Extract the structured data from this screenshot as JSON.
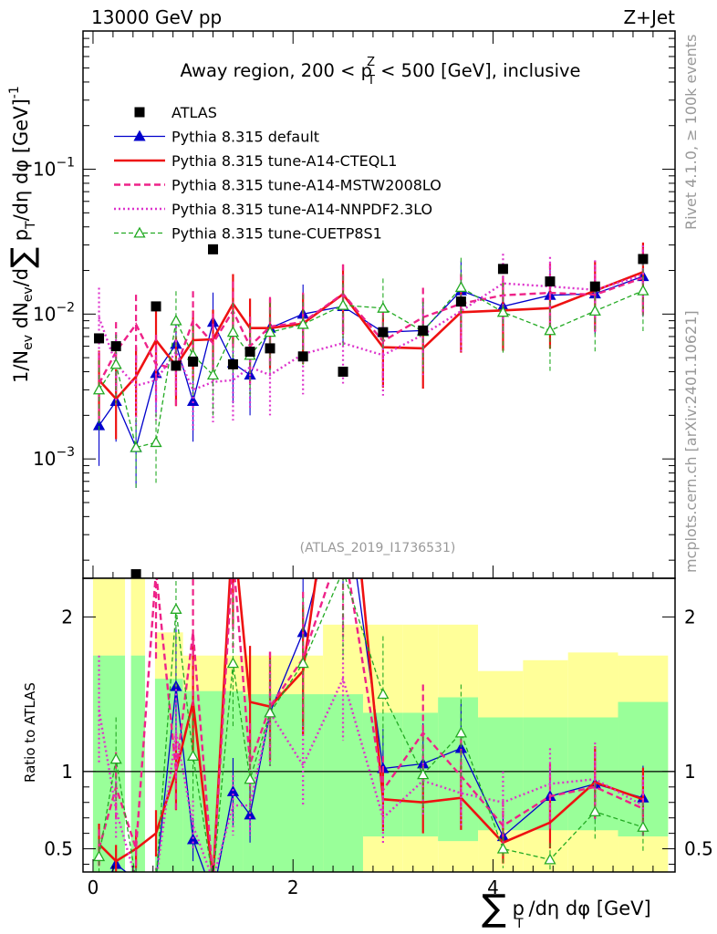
{
  "header": {
    "energy_label": "13000 GeV pp",
    "process_label": "Z+Jet",
    "rivet_label": "Rivet 4.1.0, ≥ 100k events",
    "mcplots_label": "mcplots.cern.ch [arXiv:2401.10621]",
    "analysis_id": "(ATLAS_2019_I1736531)"
  },
  "colors": {
    "atlas": "#000000",
    "default": "#0000cc",
    "cteql1": "#ee1111",
    "mstw": "#ee2288",
    "nnpdf": "#dd33cc",
    "cuetp8s1": "#22aa22",
    "band_yellow": "#ffff99",
    "band_green": "#99ff99"
  },
  "legend": [
    {
      "key": "atlas",
      "label": "ATLAS"
    },
    {
      "key": "default",
      "label": "Pythia 8.315 default"
    },
    {
      "key": "cteql1",
      "label": "Pythia 8.315 tune-A14-CTEQL1"
    },
    {
      "key": "mstw",
      "label": "Pythia 8.315 tune-A14-MSTW2008LO"
    },
    {
      "key": "nnpdf",
      "label": "Pythia 8.315 tune-A14-NNPDF2.3LO"
    },
    {
      "key": "cuetp8s1",
      "label": "Pythia 8.315 tune-CUETP8S1"
    }
  ],
  "chart_data": [
    {
      "type": "scatter",
      "title": "Away region, 200 < pTZ < 500 [GeV], inclusive",
      "title_parts": {
        "pre": "Away region, 200 < p",
        "sup": "Z",
        "sub": "T",
        "post": " < 500 [GeV], inclusive"
      },
      "ylabel": "1/Nev dNev/d∑ pT/dη dφ [GeV]-1",
      "yscale": "log",
      "ylim": [
        0.00015,
        0.9
      ],
      "xlim": [
        -0.1,
        5.82
      ],
      "yticks": [
        {
          "value": 0.001,
          "mant": "10",
          "exp": "−3"
        },
        {
          "value": 0.01,
          "mant": "10",
          "exp": "−2"
        },
        {
          "value": 0.1,
          "mant": "10",
          "exp": "−1"
        }
      ],
      "x": [
        0.06,
        0.23,
        0.43,
        0.63,
        0.83,
        1.0,
        1.2,
        1.4,
        1.57,
        1.77,
        2.1,
        2.5,
        2.9,
        3.3,
        3.68,
        4.1,
        4.57,
        5.02,
        5.5
      ],
      "series": [
        {
          "key": "atlas",
          "name": "ATLAS",
          "values": [
            0.0068,
            0.006,
            0.00016,
            0.0113,
            0.0044,
            0.0047,
            0.028,
            0.0045,
            0.0055,
            0.0058,
            0.0051,
            0.004,
            0.0075,
            0.0077,
            0.0122,
            0.0205,
            0.0168,
            0.0155,
            0.024
          ]
        },
        {
          "key": "default",
          "name": "Pythia 8.315 default",
          "values": [
            0.0017,
            0.0025,
            0.0012,
            0.0039,
            0.0062,
            0.0025,
            0.0088,
            0.0046,
            0.0038,
            0.008,
            0.01,
            0.0113,
            0.0075,
            0.0077,
            0.0145,
            0.0113,
            0.0135,
            0.0138,
            0.0182
          ]
        },
        {
          "key": "cteql1",
          "name": "Pythia 8.315 tune-A14-CTEQL1",
          "values": [
            0.0035,
            0.0026,
            0.0037,
            0.0066,
            0.0044,
            0.0066,
            0.0067,
            0.0118,
            0.008,
            0.008,
            0.0086,
            0.0137,
            0.0059,
            0.0058,
            0.0103,
            0.0106,
            0.011,
            0.0145,
            0.0195
          ]
        },
        {
          "key": "mstw",
          "name": "Pythia 8.315 tune-A14-MSTW2008LO",
          "values": [
            0.0033,
            0.0055,
            0.0085,
            0.0045,
            0.0042,
            0.009,
            0.0063,
            0.0105,
            0.006,
            0.0082,
            0.0088,
            0.0138,
            0.0065,
            0.0095,
            0.0118,
            0.0135,
            0.014,
            0.0136,
            0.0178
          ]
        },
        {
          "key": "nnpdf",
          "name": "Pythia 8.315 tune-A14-NNPDF2.3LO",
          "values": [
            0.0095,
            0.0045,
            0.0032,
            0.0035,
            0.0055,
            0.003,
            0.0034,
            0.0035,
            0.0043,
            0.0038,
            0.0053,
            0.0063,
            0.0052,
            0.0072,
            0.0105,
            0.0163,
            0.0155,
            0.0147,
            0.0186
          ]
        },
        {
          "key": "cuetp8s1",
          "name": "Pythia 8.315 tune-CUETP8S1",
          "values": [
            0.003,
            0.0045,
            0.0012,
            0.0013,
            0.009,
            0.0052,
            0.0038,
            0.0075,
            0.0052,
            0.0075,
            0.0085,
            0.0115,
            0.011,
            0.0076,
            0.0153,
            0.0103,
            0.0077,
            0.0105,
            0.0145
          ]
        }
      ]
    },
    {
      "type": "line",
      "title": "",
      "ylabel": "Ratio to ATLAS",
      "xlabel": "∑ pT/dη dφ [GeV]",
      "ylim": [
        0.35,
        2.25
      ],
      "xlim": [
        -0.1,
        5.82
      ],
      "yticks": [
        0.5,
        1,
        2
      ],
      "xticks": [
        0,
        2,
        4
      ],
      "bands": {
        "yellow": [
          [
            0.0,
            0.35,
            2.3
          ],
          [
            0.35,
            0.6,
            2.3
          ],
          [
            0.6,
            0.9,
            1.9
          ],
          [
            0.9,
            1.5,
            1.75
          ],
          [
            1.5,
            2.3,
            1.75
          ],
          [
            2.3,
            2.7,
            1.95
          ],
          [
            2.7,
            3.1,
            1.95
          ],
          [
            3.1,
            3.45,
            1.95
          ],
          [
            3.45,
            3.85,
            1.95
          ],
          [
            3.85,
            4.3,
            1.65
          ],
          [
            4.3,
            4.75,
            1.72
          ],
          [
            4.75,
            5.25,
            1.77
          ],
          [
            5.25,
            5.75,
            1.75
          ]
        ],
        "green": [
          [
            0.0,
            0.35,
            1.75
          ],
          [
            0.35,
            0.6,
            1.75
          ],
          [
            0.6,
            0.9,
            1.6
          ],
          [
            0.9,
            1.5,
            1.52
          ],
          [
            1.5,
            2.3,
            1.5
          ],
          [
            2.3,
            2.7,
            1.5
          ],
          [
            2.7,
            3.1,
            1.38
          ],
          [
            3.1,
            3.45,
            1.38
          ],
          [
            3.45,
            3.85,
            1.48
          ],
          [
            3.85,
            4.3,
            1.35
          ],
          [
            4.3,
            4.75,
            1.35
          ],
          [
            4.75,
            5.25,
            1.35
          ],
          [
            5.25,
            5.75,
            1.45
          ]
        ],
        "green_low": [
          [
            0.0,
            0.35,
            0.35
          ],
          [
            0.35,
            0.6,
            0.35
          ],
          [
            0.6,
            0.9,
            0.35
          ],
          [
            0.9,
            1.5,
            0.35
          ],
          [
            1.5,
            2.3,
            0.35
          ],
          [
            2.3,
            2.7,
            0.35
          ],
          [
            2.7,
            3.1,
            0.58
          ],
          [
            3.1,
            3.45,
            0.58
          ],
          [
            3.45,
            3.85,
            0.55
          ],
          [
            3.85,
            4.3,
            0.62
          ],
          [
            4.3,
            4.75,
            0.62
          ],
          [
            4.75,
            5.25,
            0.62
          ],
          [
            5.25,
            5.75,
            0.58
          ]
        ],
        "yellow_low": [
          [
            0.0,
            0.35,
            0.35
          ],
          [
            0.35,
            0.6,
            0.35
          ],
          [
            0.6,
            0.9,
            0.35
          ],
          [
            0.9,
            1.5,
            0.35
          ],
          [
            1.5,
            2.3,
            0.35
          ],
          [
            2.3,
            2.7,
            0.35
          ],
          [
            2.7,
            3.1,
            0.35
          ],
          [
            3.1,
            3.45,
            0.35
          ],
          [
            3.45,
            3.85,
            0.35
          ],
          [
            3.85,
            4.3,
            0.35
          ],
          [
            4.3,
            4.75,
            0.35
          ],
          [
            4.75,
            5.25,
            0.35
          ],
          [
            5.25,
            5.75,
            0.35
          ]
        ]
      },
      "gaps": [
        [
          0.32,
          0.38
        ],
        [
          0.52,
          0.62
        ]
      ],
      "series": [
        {
          "key": "default",
          "values": [
            0.2,
            0.4,
            0.3,
            0.3,
            1.55,
            0.56,
            0.2,
            0.87,
            0.72,
            1.38,
            1.9,
            2.9,
            1.02,
            1.05,
            1.15,
            0.58,
            0.84,
            0.92,
            0.83
          ]
        },
        {
          "key": "cteql1",
          "values": [
            0.53,
            0.42,
            0.5,
            0.6,
            1.0,
            1.45,
            0.3,
            2.6,
            1.45,
            1.42,
            1.65,
            3.5,
            0.82,
            0.8,
            0.83,
            0.54,
            0.67,
            0.93,
            0.82
          ]
        },
        {
          "key": "mstw",
          "values": [
            0.5,
            0.9,
            0.5,
            2.3,
            1.0,
            1.9,
            0.3,
            2.4,
            1.05,
            1.42,
            1.73,
            2.5,
            0.88,
            1.25,
            0.97,
            0.65,
            0.84,
            0.9,
            0.76
          ]
        },
        {
          "key": "nnpdf",
          "values": [
            1.4,
            0.75,
            0.3,
            0.3,
            1.25,
            0.65,
            0.3,
            0.78,
            0.78,
            1.38,
            1.04,
            1.6,
            0.7,
            0.94,
            0.86,
            0.8,
            0.92,
            0.95,
            0.78
          ]
        },
        {
          "key": "cuetp8s1",
          "values": [
            0.45,
            1.08,
            0.3,
            0.3,
            2.05,
            1.1,
            0.3,
            1.7,
            0.95,
            1.38,
            1.7,
            2.3,
            1.5,
            0.98,
            1.25,
            0.5,
            0.43,
            0.74,
            0.64
          ]
        }
      ]
    }
  ]
}
